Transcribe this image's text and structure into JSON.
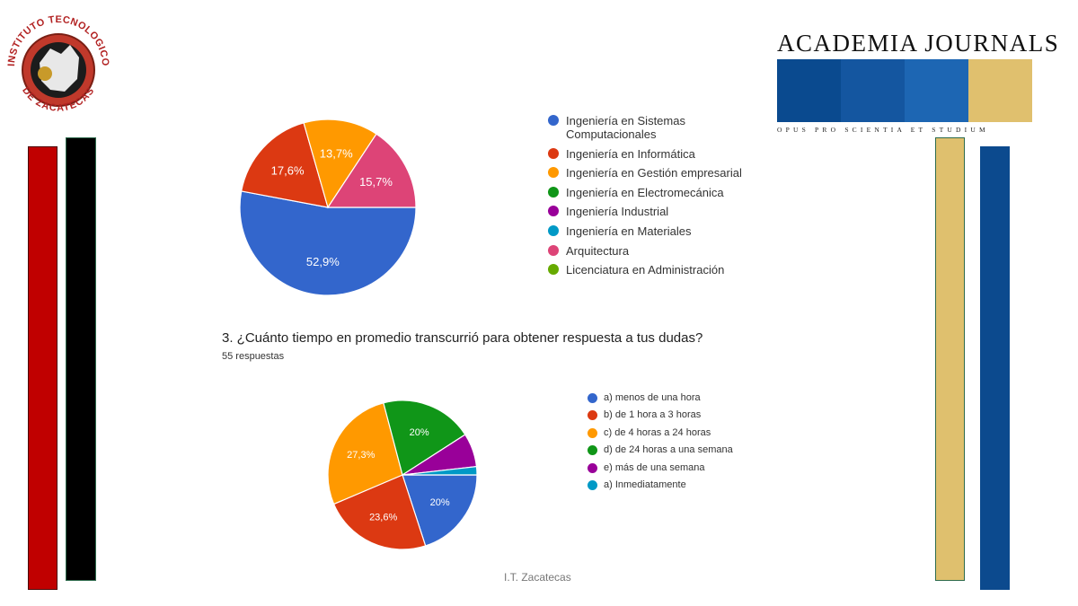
{
  "logo_left": {
    "text_top": "INSTITUTO TECNOLOGICO",
    "text_bottom": "DE ZACATECAS"
  },
  "logo_right": {
    "title": "ACADEMIA JOURNALS",
    "motto": "OPUS PRO SCIENTIA ET STUDIUM",
    "colors": [
      "#0a4a8f",
      "#1456a0",
      "#1d66b3",
      "#e0c06e"
    ]
  },
  "side_bars": {
    "left_colors": [
      "#c00000",
      "#000000"
    ],
    "right_colors": [
      "#dfc06e",
      "#0c4a8e"
    ]
  },
  "question": {
    "text": "3. ¿Cuánto tiempo en promedio transcurrió para obtener respuesta a tus dudas?",
    "responses": "55 respuestas"
  },
  "footer": "I.T. Zacatecas",
  "chart_data": [
    {
      "type": "pie",
      "slices": [
        {
          "label": "Ingeniería en Sistemas Computacionales",
          "value": 52.9,
          "color": "#3366cc",
          "value_label": "52,9%"
        },
        {
          "label": "Ingeniería en Informática",
          "value": 17.6,
          "color": "#dc3912",
          "value_label": "17,6%"
        },
        {
          "label": "Ingeniería en Gestión empresarial",
          "value": 13.7,
          "color": "#ff9900",
          "value_label": "13,7%"
        },
        {
          "label": "Ingeniería en Electromecánica",
          "value": 0,
          "color": "#109618",
          "value_label": ""
        },
        {
          "label": "Ingeniería Industrial",
          "value": 0,
          "color": "#990099",
          "value_label": ""
        },
        {
          "label": "Ingeniería en Materiales",
          "value": 0,
          "color": "#0099c6",
          "value_label": ""
        },
        {
          "label": "Arquitectura",
          "value": 15.7,
          "color": "#dd4477",
          "value_label": "15,7%"
        },
        {
          "label": "Licenciatura en Administración",
          "value": 0,
          "color": "#66aa00",
          "value_label": ""
        }
      ],
      "legend_position": "right"
    },
    {
      "type": "pie",
      "slices": [
        {
          "label": "a) menos de una hora",
          "value": 20,
          "color": "#3366cc",
          "value_label": "20%"
        },
        {
          "label": "b) de 1 hora a 3 horas",
          "value": 23.6,
          "color": "#dc3912",
          "value_label": "23,6%"
        },
        {
          "label": "c) de 4 horas a 24 horas",
          "value": 27.3,
          "color": "#ff9900",
          "value_label": "27,3%"
        },
        {
          "label": "d) de 24 horas a una semana",
          "value": 20,
          "color": "#109618",
          "value_label": "20%"
        },
        {
          "label": "e) más de una semana",
          "value": 7.3,
          "color": "#990099",
          "value_label": ""
        },
        {
          "label": "a) Inmediatamente",
          "value": 1.8,
          "color": "#0099c6",
          "value_label": ""
        }
      ],
      "legend_position": "right"
    }
  ]
}
